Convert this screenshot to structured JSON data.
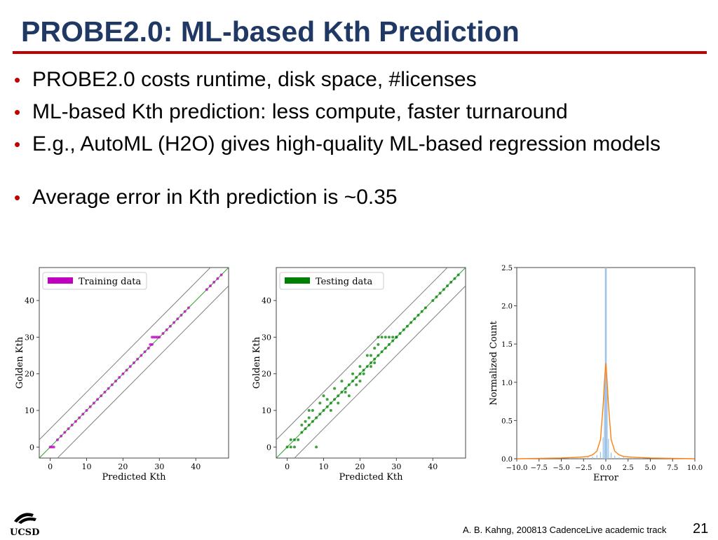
{
  "slide": {
    "title": "PROBE2.0: ML-based Kth Prediction",
    "bullets": [
      "PROBE2.0 costs runtime, disk space, #licenses",
      "ML-based Kth prediction: less compute, faster turnaround",
      "E.g., AutoML (H2O) gives high-quality ML-based regression models",
      "Average error in Kth prediction is ~0.35"
    ],
    "bullet_symbol": "•",
    "footer": "A. B. Kahng, 200813 CadenceLive academic track",
    "page_number": "21",
    "logo_text": "UCSD",
    "colors": {
      "title": "#1f3864",
      "rule": "#c00000",
      "bullet": "#c00000"
    }
  },
  "chart_data": [
    {
      "type": "scatter",
      "legend": "Training data",
      "legend_position": "top-left",
      "color": "#bf00bf",
      "xlabel": "Predicted Kth",
      "ylabel": "Golden Kth",
      "xlim": [
        -3,
        49
      ],
      "ylim": [
        -3,
        49
      ],
      "xticks": [
        0,
        10,
        20,
        30,
        40
      ],
      "yticks": [
        0,
        10,
        20,
        30,
        40
      ],
      "reference_lines": [
        {
          "offset": 0,
          "color": "#2ca02c"
        },
        {
          "offset": 5,
          "color": "#808080"
        },
        {
          "offset": -5,
          "color": "#808080"
        }
      ],
      "points": [
        [
          0,
          0
        ],
        [
          0.5,
          0
        ],
        [
          1,
          0
        ],
        [
          2,
          2
        ],
        [
          3,
          3
        ],
        [
          4,
          4
        ],
        [
          5,
          5
        ],
        [
          6,
          6
        ],
        [
          7,
          7
        ],
        [
          8,
          8
        ],
        [
          9,
          9
        ],
        [
          10,
          10
        ],
        [
          11,
          11
        ],
        [
          12,
          12
        ],
        [
          13,
          13
        ],
        [
          14,
          14
        ],
        [
          15,
          15
        ],
        [
          16,
          16
        ],
        [
          17,
          17
        ],
        [
          18,
          18
        ],
        [
          19,
          19
        ],
        [
          20,
          20
        ],
        [
          21,
          21
        ],
        [
          22,
          22
        ],
        [
          23,
          23
        ],
        [
          24,
          24
        ],
        [
          25,
          25
        ],
        [
          26,
          26
        ],
        [
          27,
          27
        ],
        [
          27.5,
          28
        ],
        [
          28,
          28
        ],
        [
          28,
          30
        ],
        [
          28.5,
          30
        ],
        [
          29,
          30
        ],
        [
          29.5,
          30
        ],
        [
          30,
          30
        ],
        [
          31,
          31
        ],
        [
          32,
          32
        ],
        [
          33,
          33
        ],
        [
          34,
          34
        ],
        [
          35,
          35
        ],
        [
          36,
          36
        ],
        [
          37,
          37
        ],
        [
          38,
          38
        ],
        [
          43,
          43
        ],
        [
          44,
          44
        ],
        [
          45,
          45
        ],
        [
          46,
          46
        ],
        [
          47,
          47
        ]
      ]
    },
    {
      "type": "scatter",
      "legend": "Testing data",
      "legend_position": "top-left",
      "color": "#008000",
      "xlabel": "Predicted Kth",
      "ylabel": "Golden Kth",
      "xlim": [
        -3,
        49
      ],
      "ylim": [
        -3,
        49
      ],
      "xticks": [
        0,
        10,
        20,
        30,
        40
      ],
      "yticks": [
        0,
        10,
        20,
        30,
        40
      ],
      "reference_lines": [
        {
          "offset": 0,
          "color": "#2ca02c"
        },
        {
          "offset": 5,
          "color": "#808080"
        },
        {
          "offset": -5,
          "color": "#808080"
        }
      ],
      "points": [
        [
          0,
          0
        ],
        [
          1,
          0
        ],
        [
          2,
          0
        ],
        [
          1,
          2
        ],
        [
          2,
          2
        ],
        [
          3,
          2
        ],
        [
          4,
          4
        ],
        [
          5,
          5
        ],
        [
          4,
          6
        ],
        [
          6,
          6
        ],
        [
          5,
          7
        ],
        [
          7,
          7
        ],
        [
          8,
          8
        ],
        [
          6,
          8
        ],
        [
          9,
          9
        ],
        [
          7,
          10
        ],
        [
          10,
          10
        ],
        [
          11,
          11
        ],
        [
          12,
          12
        ],
        [
          13,
          13
        ],
        [
          14,
          14
        ],
        [
          15,
          15
        ],
        [
          16,
          16
        ],
        [
          17,
          17
        ],
        [
          18,
          18
        ],
        [
          19,
          19
        ],
        [
          20,
          20
        ],
        [
          21,
          21
        ],
        [
          22,
          22
        ],
        [
          23,
          23
        ],
        [
          24,
          24
        ],
        [
          25,
          25
        ],
        [
          26,
          26
        ],
        [
          27,
          27
        ],
        [
          28,
          28
        ],
        [
          29,
          29
        ],
        [
          30,
          30
        ],
        [
          31,
          31
        ],
        [
          32,
          32
        ],
        [
          33,
          33
        ],
        [
          34,
          34
        ],
        [
          35,
          35
        ],
        [
          36,
          36
        ],
        [
          37,
          37
        ],
        [
          38,
          38
        ],
        [
          40,
          40
        ],
        [
          41,
          41
        ],
        [
          42,
          42
        ],
        [
          43,
          43
        ],
        [
          44,
          44
        ],
        [
          45,
          45
        ],
        [
          46,
          46
        ],
        [
          47,
          47
        ],
        [
          8,
          0
        ],
        [
          15,
          18
        ],
        [
          16,
          15
        ],
        [
          14,
          12
        ],
        [
          17,
          14
        ],
        [
          10,
          14
        ],
        [
          6,
          10
        ],
        [
          12,
          10
        ],
        [
          9,
          12
        ],
        [
          11,
          13
        ],
        [
          13,
          16
        ],
        [
          18,
          20
        ],
        [
          20,
          22
        ],
        [
          22,
          25
        ],
        [
          23,
          25
        ],
        [
          24,
          27
        ],
        [
          25,
          30
        ],
        [
          26,
          30
        ],
        [
          27,
          30
        ],
        [
          28,
          30
        ],
        [
          29,
          30
        ],
        [
          30,
          30
        ],
        [
          20,
          18
        ],
        [
          23,
          22
        ],
        [
          21,
          20
        ],
        [
          25,
          28
        ],
        [
          19,
          17
        ],
        [
          24,
          23
        ]
      ]
    },
    {
      "type": "histogram",
      "color": "#9ec3e6",
      "kde_color": "#ff7f0e",
      "xlabel": "Error",
      "ylabel": "Normalized Count",
      "xlim": [
        -10.0,
        10.0
      ],
      "ylim": [
        0.0,
        2.5
      ],
      "xticks": [
        -10.0,
        -7.5,
        -5.0,
        -2.5,
        0.0,
        2.5,
        5.0,
        7.5,
        10.0
      ],
      "yticks": [
        0.0,
        0.5,
        1.0,
        1.5,
        2.0,
        2.5
      ],
      "bins": [
        {
          "x": -4.0,
          "y": 0.01
        },
        {
          "x": -3.0,
          "y": 0.01
        },
        {
          "x": -2.0,
          "y": 0.02
        },
        {
          "x": -1.5,
          "y": 0.03
        },
        {
          "x": -1.0,
          "y": 0.05
        },
        {
          "x": -0.6,
          "y": 0.09
        },
        {
          "x": -0.3,
          "y": 0.28
        },
        {
          "x": -0.15,
          "y": 1.0
        },
        {
          "x": -0.05,
          "y": 2.55
        },
        {
          "x": 0.05,
          "y": 2.5
        },
        {
          "x": 0.15,
          "y": 0.95
        },
        {
          "x": 0.3,
          "y": 0.26
        },
        {
          "x": 0.6,
          "y": 0.08
        },
        {
          "x": 1.0,
          "y": 0.04
        },
        {
          "x": 1.5,
          "y": 0.02
        },
        {
          "x": 2.0,
          "y": 0.02
        },
        {
          "x": 3.0,
          "y": 0.01
        },
        {
          "x": 4.0,
          "y": 0.01
        }
      ],
      "kde": [
        [
          -10,
          0.0
        ],
        [
          -5,
          0.01
        ],
        [
          -3,
          0.02
        ],
        [
          -2,
          0.03
        ],
        [
          -1.5,
          0.05
        ],
        [
          -1,
          0.1
        ],
        [
          -0.6,
          0.25
        ],
        [
          -0.3,
          0.7
        ],
        [
          -0.1,
          1.1
        ],
        [
          0,
          1.25
        ],
        [
          0.1,
          1.1
        ],
        [
          0.3,
          0.7
        ],
        [
          0.6,
          0.25
        ],
        [
          1,
          0.1
        ],
        [
          1.5,
          0.05
        ],
        [
          2,
          0.03
        ],
        [
          3,
          0.02
        ],
        [
          5,
          0.01
        ],
        [
          10,
          0.0
        ]
      ]
    }
  ]
}
